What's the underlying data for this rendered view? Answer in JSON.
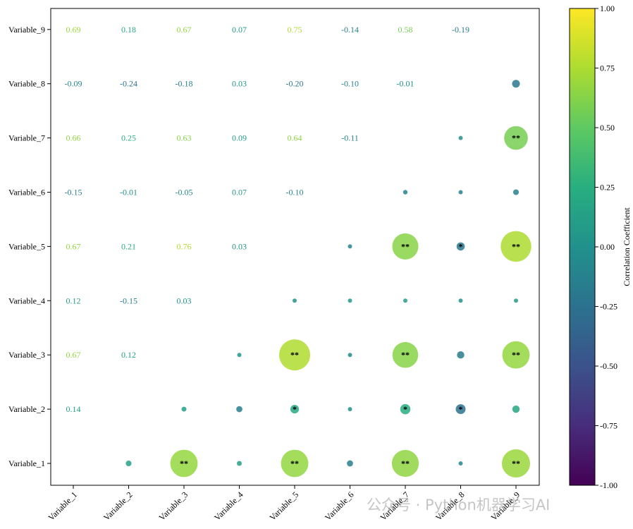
{
  "chart_data": {
    "type": "heatmap",
    "variables": [
      "Variable_1",
      "Variable_2",
      "Variable_3",
      "Variable_4",
      "Variable_5",
      "Variable_6",
      "Variable_7",
      "Variable_8",
      "Variable_9"
    ],
    "tick_labels": [
      "Variable_1",
      "Variable_2",
      "Variable_3",
      "Variable_4",
      "Variable_5",
      "Variable_6",
      "Variable_7",
      "Variable_8",
      "Variable_9"
    ],
    "upper_triangle_values": [
      [
        2,
        1,
        0.14
      ],
      [
        3,
        1,
        0.67
      ],
      [
        3,
        2,
        0.12
      ],
      [
        4,
        1,
        0.12
      ],
      [
        4,
        2,
        -0.15
      ],
      [
        4,
        3,
        0.03
      ],
      [
        5,
        1,
        0.67
      ],
      [
        5,
        2,
        0.21
      ],
      [
        5,
        3,
        0.76
      ],
      [
        5,
        4,
        0.03
      ],
      [
        6,
        1,
        -0.15
      ],
      [
        6,
        2,
        -0.01
      ],
      [
        6,
        3,
        -0.05
      ],
      [
        6,
        4,
        0.07
      ],
      [
        6,
        5,
        -0.1
      ],
      [
        7,
        1,
        0.66
      ],
      [
        7,
        2,
        0.25
      ],
      [
        7,
        3,
        0.63
      ],
      [
        7,
        4,
        0.09
      ],
      [
        7,
        5,
        0.64
      ],
      [
        7,
        6,
        -0.11
      ],
      [
        8,
        1,
        -0.09
      ],
      [
        8,
        2,
        -0.24
      ],
      [
        8,
        3,
        -0.18
      ],
      [
        8,
        4,
        0.03
      ],
      [
        8,
        5,
        -0.2
      ],
      [
        8,
        6,
        -0.1
      ],
      [
        8,
        7,
        -0.01
      ],
      [
        9,
        1,
        0.69
      ],
      [
        9,
        2,
        0.18
      ],
      [
        9,
        3,
        0.67
      ],
      [
        9,
        4,
        0.07
      ],
      [
        9,
        5,
        0.75
      ],
      [
        9,
        6,
        -0.14
      ],
      [
        9,
        7,
        0.58
      ],
      [
        9,
        8,
        -0.19
      ]
    ],
    "value_labels": {
      "2,1": "0.14",
      "3,1": "0.67",
      "3,2": "0.12",
      "4,1": "0.12",
      "4,2": "-0.15",
      "4,3": "0.03",
      "5,1": "0.67",
      "5,2": "0.21",
      "5,3": "0.76",
      "5,4": "0.03",
      "6,1": "-0.15",
      "6,2": "-0.01",
      "6,3": "-0.05",
      "6,4": "0.07",
      "6,5": "-0.10",
      "7,1": "0.66",
      "7,2": "0.25",
      "7,3": "0.63",
      "7,4": "0.09",
      "7,5": "0.64",
      "7,6": "-0.11",
      "8,1": "-0.09",
      "8,2": "-0.24",
      "8,3": "-0.18",
      "8,4": "0.03",
      "8,5": "-0.20",
      "8,6": "-0.10",
      "8,7": "-0.01",
      "9,1": "0.69",
      "9,2": "0.18",
      "9,3": "0.67",
      "9,4": "0.07",
      "9,5": "0.75",
      "9,6": "-0.14",
      "9,7": "0.58",
      "9,8": "-0.19"
    },
    "lower_triangle_markers": "circle size and colour encode the same correlation value as the mirrored cell",
    "significance_markers": {
      "1,3": "**",
      "1,5": "**",
      "1,7": "**",
      "1,9": "**",
      "2,5": "*",
      "2,7": "*",
      "2,8": "*",
      "3,5": "**",
      "3,7": "**",
      "3,9": "**",
      "5,7": "**",
      "5,8": "*",
      "5,9": "**",
      "7,9": "**"
    },
    "colorbar": {
      "label": "Correlation Coefficient",
      "colormap": "viridis",
      "range": [
        -1.0,
        1.0
      ],
      "ticks": [
        "1.00",
        "0.75",
        "0.50",
        "0.25",
        "0.00",
        "-0.25",
        "-0.50",
        "-0.75",
        "-1.00"
      ],
      "tick_values": [
        1.0,
        0.75,
        0.5,
        0.25,
        0.0,
        -0.25,
        -0.5,
        -0.75,
        -1.0
      ]
    },
    "grid": false
  },
  "watermark": "公众号 · Python机器学习AI"
}
